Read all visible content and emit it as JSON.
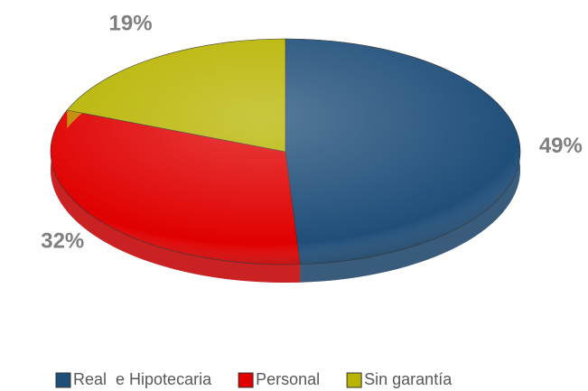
{
  "chart_data": {
    "type": "pie",
    "categories": [
      "Real  e Hipotecaria",
      "Personal",
      "Sin garantía"
    ],
    "values": [
      49,
      32,
      19
    ],
    "value_labels": [
      "49%",
      "32%",
      "19%"
    ],
    "colors": [
      "#1f4e79",
      "#e00000",
      "#b8b400"
    ],
    "legend": "bottom"
  }
}
